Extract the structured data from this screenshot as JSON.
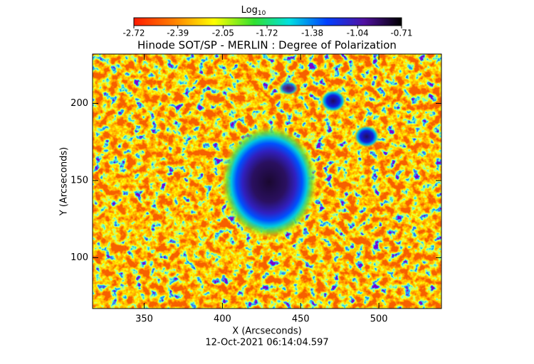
{
  "chart_data": {
    "type": "image",
    "title": "Hinode SOT/SP - MERLIN : Degree of Polarization",
    "colorbar_label": "Log",
    "colorbar_label_sub": "10",
    "clim": [
      -2.72,
      -0.71
    ],
    "cticks": [
      -2.72,
      -2.39,
      -2.05,
      -1.72,
      -1.38,
      -1.04,
      -0.71
    ],
    "xlabel": "X (Arcseconds)",
    "ylabel": "Y (Arcseconds)",
    "xlim": [
      317,
      540
    ],
    "xticks": [
      350,
      400,
      450,
      500
    ],
    "ylim": [
      67,
      232
    ],
    "yticks": [
      100,
      150,
      200
    ],
    "timestamp": "12-Oct-2021 06:14:04.597"
  }
}
